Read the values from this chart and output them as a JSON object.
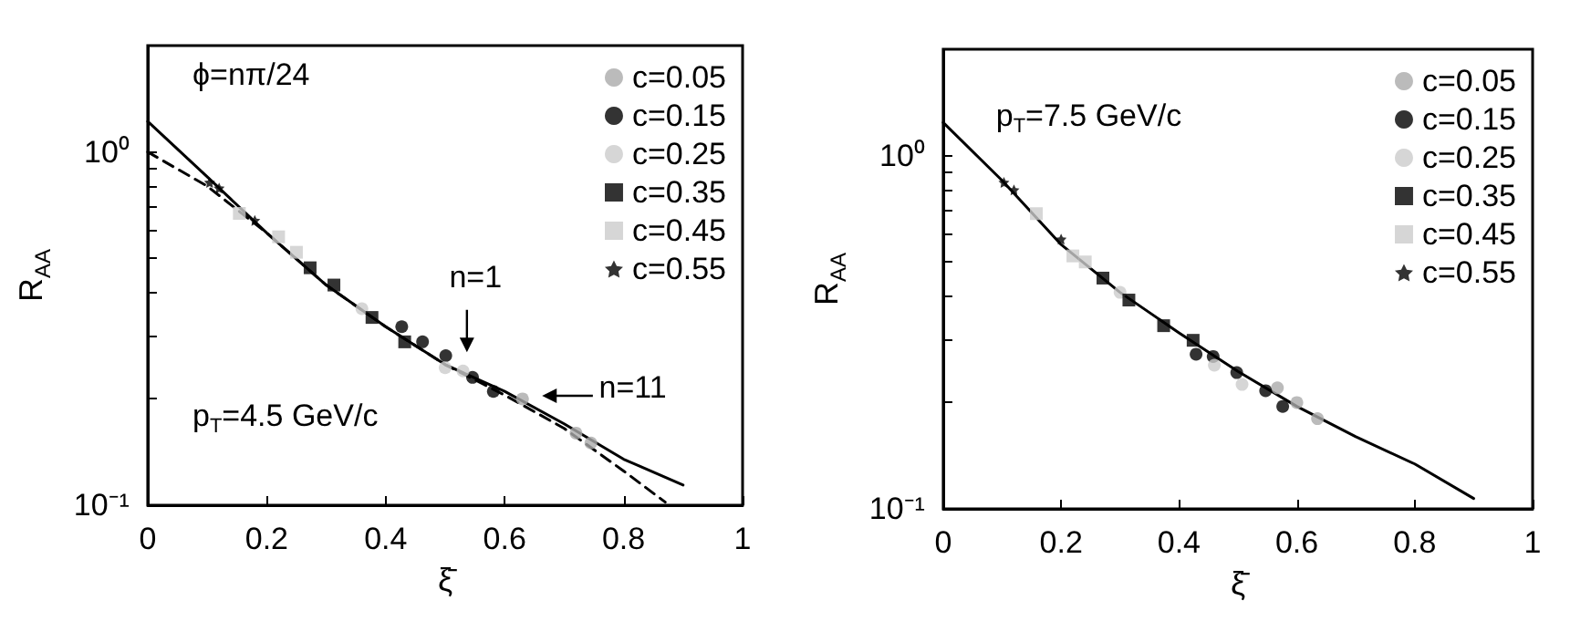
{
  "chart_data": [
    {
      "type": "scatter",
      "xlabel": "ξ̄",
      "ylabel": "R$_{AA}$",
      "xlim": [
        0,
        1
      ],
      "xticks": [
        0,
        0.2,
        0.4,
        0.6,
        0.8,
        1
      ],
      "ylim": [
        0.1,
        2
      ],
      "yticks": [
        {
          "value": 0.1,
          "label": "10⁻¹"
        },
        {
          "value": 0.2,
          "label": null
        },
        {
          "value": 0.3,
          "label": null
        },
        {
          "value": 0.4,
          "label": null
        },
        {
          "value": 0.5,
          "label": null
        },
        {
          "value": 0.6,
          "label": null
        },
        {
          "value": 0.7,
          "label": null
        },
        {
          "value": 0.8,
          "label": null
        },
        {
          "value": 0.9,
          "label": null
        },
        {
          "value": 1,
          "label": "10⁰"
        }
      ],
      "log": "y",
      "grid": false,
      "legend": "top right",
      "annotations": [
        "ϕ=nπ/24",
        "p$_{T}$=4.5 GeV/c",
        "n=1",
        "n=11"
      ],
      "series": [
        {
          "name": "c=0.05",
          "color": "#aaaaaa",
          "marker": "circle",
          "x": [
            0.63,
            0.72,
            0.745
          ],
          "values": [
            0.2,
            0.16,
            0.15
          ]
        },
        {
          "name": "c=0.15",
          "color": "#000000",
          "marker": "circle",
          "x": [
            0.427,
            0.462,
            0.501,
            0.546,
            0.581
          ],
          "values": [
            0.32,
            0.29,
            0.265,
            0.23,
            0.21
          ]
        },
        {
          "name": "c=0.25",
          "color": "#cccccc",
          "marker": "circle",
          "x": [
            0.36,
            0.5,
            0.53
          ],
          "values": [
            0.36,
            0.245,
            0.24
          ]
        },
        {
          "name": "c=0.35",
          "color": "#000000",
          "marker": "square",
          "x": [
            0.273,
            0.313,
            0.377,
            0.432
          ],
          "values": [
            0.47,
            0.42,
            0.34,
            0.29
          ]
        },
        {
          "name": "c=0.45",
          "color": "#cccccc",
          "marker": "square",
          "x": [
            0.154,
            0.22,
            0.25
          ],
          "values": [
            0.67,
            0.575,
            0.52
          ]
        },
        {
          "name": "c=0.55",
          "color": "#000000",
          "marker": "star",
          "x": [
            0.104,
            0.12,
            0.18
          ],
          "values": [
            0.82,
            0.79,
            0.64
          ]
        },
        {
          "type": "line",
          "color": "#000000",
          "marker": "none",
          "line_style": "solid",
          "x": [
            0,
            0.1,
            0.2,
            0.3,
            0.4,
            0.5,
            0.6,
            0.7,
            0.8,
            0.9
          ],
          "values": [
            1.22,
            0.85,
            0.59,
            0.42,
            0.32,
            0.25,
            0.21,
            0.17,
            0.135,
            0.114
          ]
        },
        {
          "type": "line",
          "color": "#000000",
          "marker": "none",
          "line_style": "dashed",
          "x": [
            0,
            0.1,
            0.2,
            0.3,
            0.4,
            0.5,
            0.6,
            0.7,
            0.8,
            0.87
          ],
          "values": [
            1.0,
            0.8,
            0.59,
            0.42,
            0.32,
            0.25,
            0.205,
            0.165,
            0.125,
            0.102
          ]
        }
      ]
    },
    {
      "type": "scatter",
      "xlabel": "ξ̄",
      "ylabel": "R$_{AA}$",
      "xlim": [
        0,
        1
      ],
      "xticks": [
        0,
        0.2,
        0.4,
        0.6,
        0.8,
        1
      ],
      "ylim": [
        0.1,
        2
      ],
      "yticks": [
        {
          "value": 0.1,
          "label": "10⁻¹"
        },
        {
          "value": 0.2,
          "label": null
        },
        {
          "value": 0.3,
          "label": null
        },
        {
          "value": 0.4,
          "label": null
        },
        {
          "value": 0.5,
          "label": null
        },
        {
          "value": 0.6,
          "label": null
        },
        {
          "value": 0.7,
          "label": null
        },
        {
          "value": 0.8,
          "label": null
        },
        {
          "value": 0.9,
          "label": null
        },
        {
          "value": 1,
          "label": "10⁰"
        }
      ],
      "log": "y",
      "grid": false,
      "legend": "top right",
      "annotations": [
        "p$_{T}$=7.5 GeV/c"
      ],
      "series": [
        {
          "name": "c=0.05",
          "color": "#aaaaaa",
          "marker": "circle",
          "x": [
            0.567,
            0.6,
            0.635
          ],
          "values": [
            0.22,
            0.2,
            0.18
          ]
        },
        {
          "name": "c=0.15",
          "color": "#000000",
          "marker": "circle",
          "x": [
            0.429,
            0.458,
            0.498,
            0.547,
            0.576
          ],
          "values": [
            0.274,
            0.27,
            0.243,
            0.216,
            0.195
          ]
        },
        {
          "name": "c=0.25",
          "color": "#cccccc",
          "marker": "circle",
          "x": [
            0.3,
            0.46,
            0.507
          ],
          "values": [
            0.41,
            0.255,
            0.225
          ]
        },
        {
          "name": "c=0.35",
          "color": "#000000",
          "marker": "square",
          "x": [
            0.271,
            0.315,
            0.374,
            0.424
          ],
          "values": [
            0.45,
            0.39,
            0.33,
            0.3
          ]
        },
        {
          "name": "c=0.45",
          "color": "#cccccc",
          "marker": "square",
          "x": [
            0.158,
            0.22,
            0.241
          ],
          "values": [
            0.685,
            0.52,
            0.5
          ]
        },
        {
          "name": "c=0.55",
          "color": "#000000",
          "marker": "star",
          "x": [
            0.103,
            0.12,
            0.2
          ],
          "values": [
            0.84,
            0.8,
            0.58
          ]
        },
        {
          "type": "line",
          "color": "#000000",
          "marker": "none",
          "line_style": "solid",
          "x": [
            0,
            0.1,
            0.2,
            0.3,
            0.4,
            0.5,
            0.6,
            0.7,
            0.8,
            0.9
          ],
          "values": [
            1.24,
            0.85,
            0.56,
            0.41,
            0.315,
            0.245,
            0.195,
            0.16,
            0.134,
            0.107
          ]
        }
      ]
    }
  ]
}
